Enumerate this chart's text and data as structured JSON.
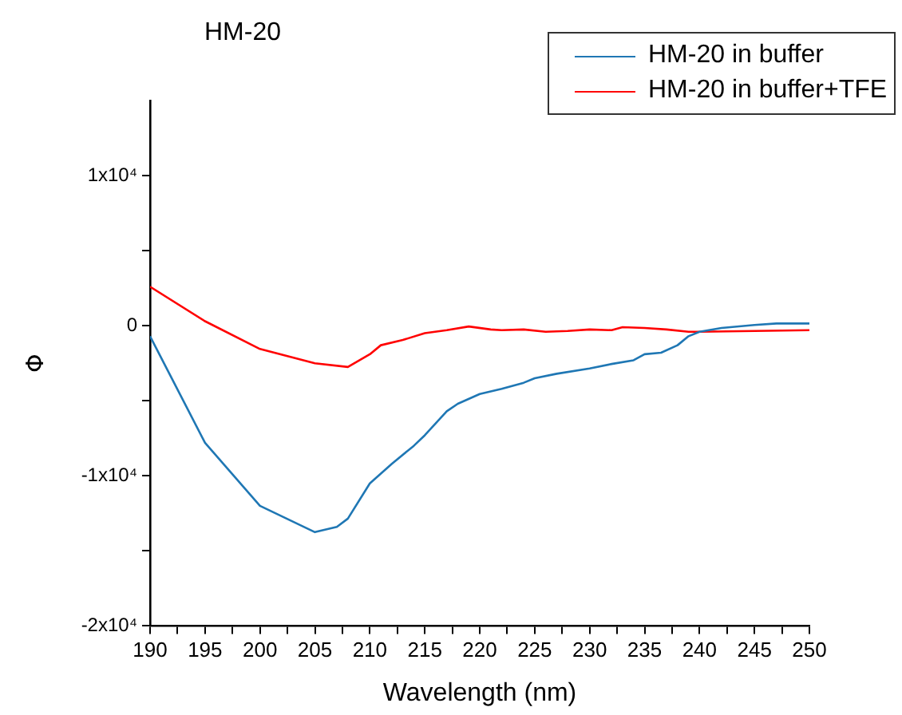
{
  "chart_data": {
    "type": "line",
    "title": "HM-20",
    "xlabel": "Wavelength (nm)",
    "ylabel": "Φ",
    "xlim": [
      190,
      250
    ],
    "xticks": [
      190,
      {
        "value": 192.5,
        "label": null
      },
      195,
      {
        "value": 197.5,
        "label": null
      },
      200,
      {
        "value": 202.5,
        "label": null
      },
      205,
      {
        "value": 207.5,
        "label": null
      },
      210,
      {
        "value": 212.5,
        "label": null
      },
      215,
      {
        "value": 217.5,
        "label": null
      },
      220,
      {
        "value": 222.5,
        "label": null
      },
      225,
      {
        "value": 227.5,
        "label": null
      },
      230,
      {
        "value": 232.5,
        "label": null
      },
      235,
      {
        "value": 237.5,
        "label": null
      },
      240,
      {
        "value": 242.5,
        "label": null
      },
      245,
      {
        "value": 247.5,
        "label": null
      },
      250
    ],
    "ylim": [
      -20000,
      15000
    ],
    "yticks": [
      {
        "value": -20000,
        "label": "-2x10⁴"
      },
      {
        "value": -15000,
        "label": null
      },
      {
        "value": -10000,
        "label": "-1x10⁴"
      },
      {
        "value": -5000,
        "label": null
      },
      0,
      {
        "value": 5000,
        "label": null
      },
      {
        "value": 10000,
        "label": "1x10⁴"
      }
    ],
    "grid": false,
    "legend": "top right",
    "marker": "none",
    "line_style": "solid",
    "series": [
      {
        "name": "HM-20 in buffer",
        "color": "#1f77b4",
        "x": [
          190,
          195,
          200,
          205,
          207,
          208,
          210,
          212,
          214,
          215,
          217,
          218,
          220,
          222,
          224,
          225,
          227,
          230,
          232,
          234,
          235,
          236.5,
          238,
          239,
          240,
          242,
          245,
          247,
          250
        ],
        "values": [
          -700,
          -7800,
          -12000,
          -13750,
          -13400,
          -12850,
          -10500,
          -9200,
          -8000,
          -7300,
          -5700,
          -5200,
          -4550,
          -4200,
          -3800,
          -3500,
          -3200,
          -2850,
          -2550,
          -2300,
          -1900,
          -1800,
          -1300,
          -700,
          -400,
          -150,
          50,
          150,
          150
        ]
      },
      {
        "name": "HM-20 in buffer+TFE",
        "color": "#ff0000",
        "x": [
          190,
          195,
          200,
          205,
          208,
          210,
          211,
          213,
          215,
          217,
          219,
          221,
          222,
          224,
          226,
          228,
          230,
          232,
          233,
          235,
          237,
          239,
          240,
          245,
          250
        ],
        "values": [
          2600,
          300,
          -1550,
          -2500,
          -2750,
          -1900,
          -1300,
          -950,
          -500,
          -300,
          -50,
          -250,
          -300,
          -250,
          -400,
          -350,
          -250,
          -300,
          -100,
          -150,
          -250,
          -400,
          -400,
          -350,
          -300
        ]
      }
    ]
  }
}
